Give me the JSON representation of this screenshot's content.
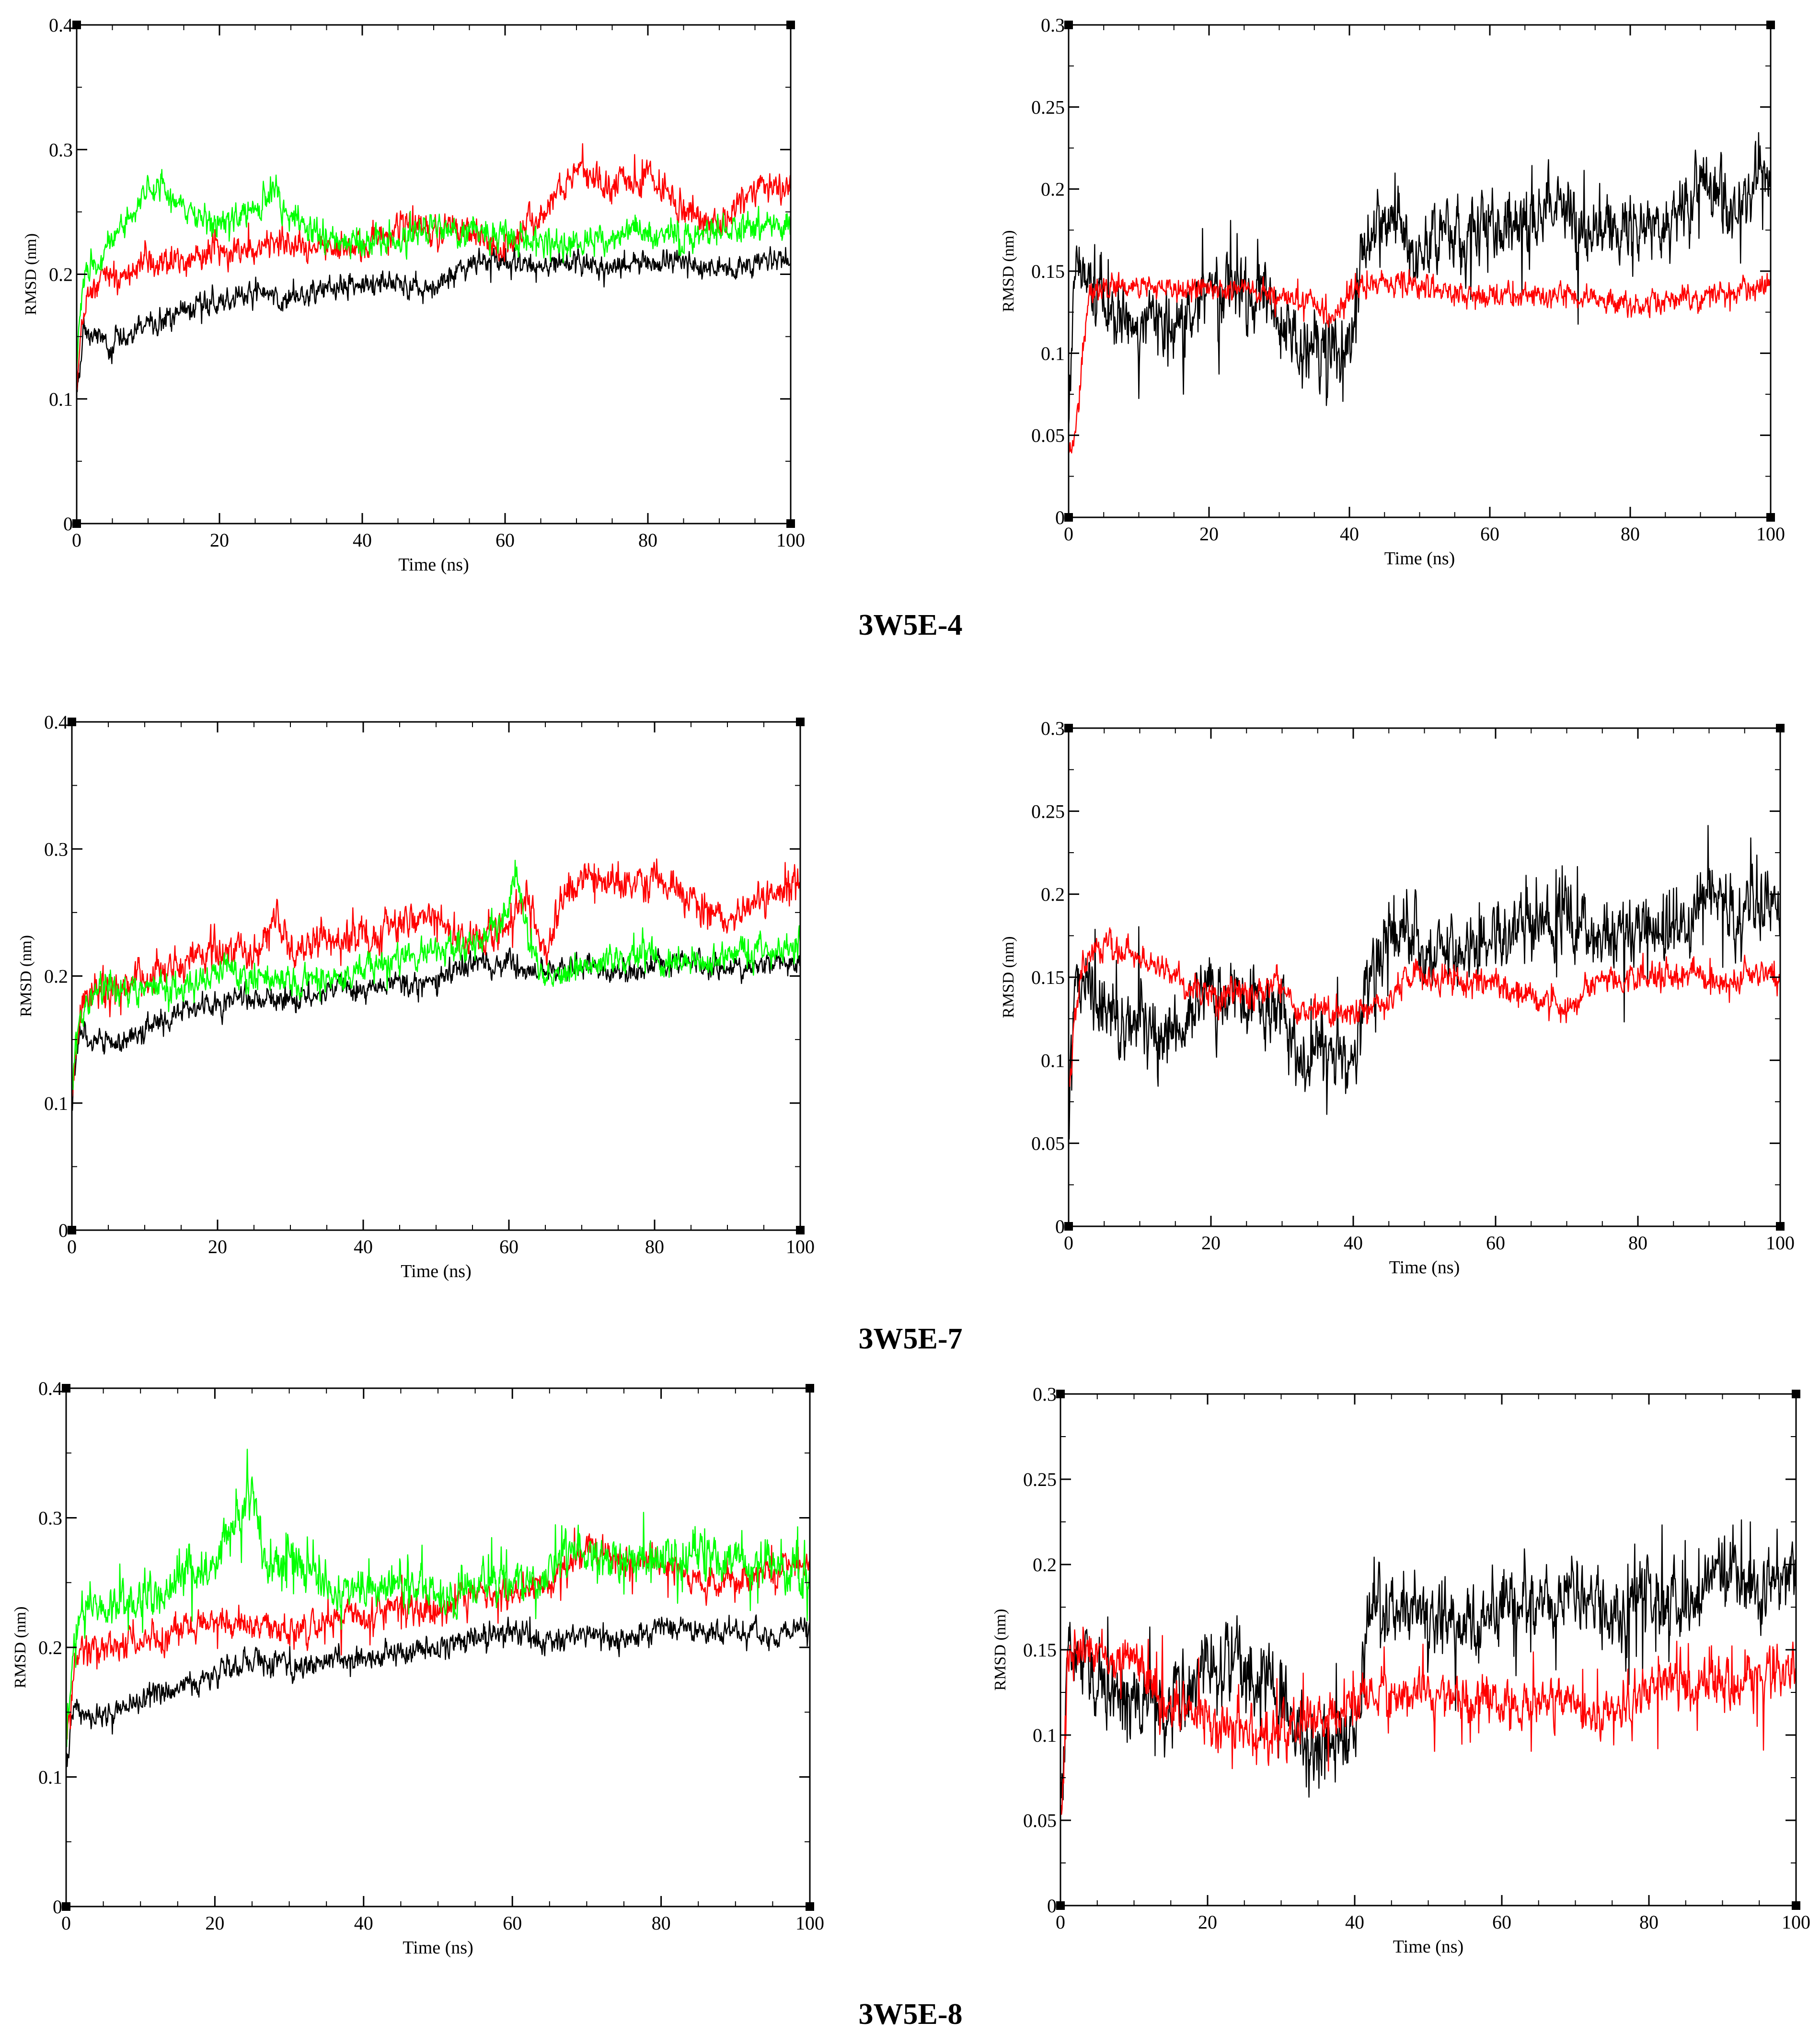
{
  "figure": {
    "captions": [
      "3W5E-4",
      "3W5E-7",
      "3W5E-8"
    ],
    "series_colors": {
      "black": "#000000",
      "red": "#ff0000",
      "green": "#00ff00"
    }
  },
  "chart_data": [
    {
      "type": "line",
      "id": "p1",
      "xlabel": "Time (ns)",
      "ylabel": "RMSD (nm)",
      "xlim": [
        0,
        100
      ],
      "ylim": [
        0,
        0.4
      ],
      "xticks": [
        0,
        20,
        40,
        60,
        80,
        100
      ],
      "xtick_labels": [
        "0",
        "20",
        "40",
        "60",
        "80",
        "100"
      ],
      "yticks": [
        0,
        0.1,
        0.2,
        0.3,
        0.4
      ],
      "ytick_labels": [
        "0",
        "0.1",
        "0.2",
        "0.3",
        "0.4"
      ],
      "series": [
        {
          "color": "#000000",
          "noise": 0.008,
          "spikes": 0.01,
          "x": [
            0,
            1,
            2,
            5,
            10,
            15,
            20,
            25,
            30,
            35,
            40,
            45,
            50,
            55,
            60,
            65,
            70,
            75,
            80,
            85,
            90,
            95,
            100
          ],
          "y": [
            0.1,
            0.16,
            0.15,
            0.145,
            0.16,
            0.17,
            0.18,
            0.185,
            0.18,
            0.19,
            0.19,
            0.195,
            0.19,
            0.21,
            0.21,
            0.205,
            0.21,
            0.205,
            0.21,
            0.21,
            0.205,
            0.21,
            0.21
          ]
        },
        {
          "color": "#ff0000",
          "noise": 0.01,
          "spikes": 0.015,
          "x": [
            0,
            1,
            2,
            5,
            10,
            15,
            20,
            25,
            30,
            35,
            40,
            45,
            50,
            55,
            60,
            65,
            67,
            70,
            75,
            80,
            85,
            90,
            95,
            100
          ],
          "y": [
            0.11,
            0.17,
            0.19,
            0.2,
            0.21,
            0.21,
            0.22,
            0.22,
            0.225,
            0.22,
            0.225,
            0.24,
            0.235,
            0.235,
            0.22,
            0.245,
            0.265,
            0.285,
            0.27,
            0.28,
            0.25,
            0.24,
            0.27,
            0.27
          ]
        },
        {
          "color": "#00ff00",
          "noise": 0.01,
          "spikes": 0.012,
          "x": [
            0,
            1,
            3,
            5,
            8,
            10,
            12,
            15,
            20,
            25,
            28,
            30,
            35,
            40,
            45,
            50,
            55,
            60,
            65,
            70,
            75,
            80,
            85,
            90,
            95,
            100
          ],
          "y": [
            0.12,
            0.2,
            0.21,
            0.23,
            0.25,
            0.27,
            0.27,
            0.25,
            0.24,
            0.25,
            0.27,
            0.24,
            0.23,
            0.225,
            0.23,
            0.235,
            0.235,
            0.23,
            0.225,
            0.225,
            0.23,
            0.235,
            0.23,
            0.235,
            0.235,
            0.24
          ]
        }
      ]
    },
    {
      "type": "line",
      "id": "p2",
      "xlabel": "Time (ns)",
      "ylabel": "RMSD (nm)",
      "xlim": [
        0,
        100
      ],
      "ylim": [
        0,
        0.3
      ],
      "xticks": [
        0,
        20,
        40,
        60,
        80,
        100
      ],
      "xtick_labels": [
        "0",
        "20",
        "40",
        "60",
        "80",
        "100"
      ],
      "yticks": [
        0,
        0.05,
        0.1,
        0.15,
        0.2,
        0.25,
        0.3
      ],
      "ytick_labels": [
        "0",
        "0.05",
        "0.1",
        "0.15",
        "0.2",
        "0.25",
        "0.3"
      ],
      "series": [
        {
          "color": "#000000",
          "noise": 0.018,
          "spikes": 0.04,
          "x": [
            0,
            1,
            3,
            5,
            10,
            15,
            20,
            25,
            30,
            33,
            36,
            40,
            42,
            45,
            50,
            55,
            60,
            65,
            70,
            75,
            80,
            85,
            90,
            95,
            100
          ],
          "y": [
            0.06,
            0.15,
            0.14,
            0.13,
            0.12,
            0.11,
            0.14,
            0.14,
            0.13,
            0.1,
            0.1,
            0.1,
            0.17,
            0.18,
            0.165,
            0.17,
            0.175,
            0.18,
            0.185,
            0.17,
            0.18,
            0.175,
            0.2,
            0.185,
            0.21
          ]
        },
        {
          "color": "#ff0000",
          "noise": 0.006,
          "spikes": 0.01,
          "x": [
            0,
            1,
            2,
            3,
            5,
            10,
            20,
            30,
            35,
            38,
            40,
            45,
            50,
            60,
            70,
            80,
            90,
            100
          ],
          "y": [
            0.04,
            0.05,
            0.1,
            0.14,
            0.14,
            0.14,
            0.14,
            0.135,
            0.13,
            0.12,
            0.14,
            0.145,
            0.14,
            0.135,
            0.135,
            0.13,
            0.135,
            0.14
          ]
        }
      ]
    },
    {
      "type": "line",
      "id": "p3",
      "xlabel": "Time (ns)",
      "ylabel": "RMSD (nm)",
      "xlim": [
        0,
        100
      ],
      "ylim": [
        0,
        0.4
      ],
      "xticks": [
        0,
        20,
        40,
        60,
        80,
        100
      ],
      "xtick_labels": [
        "0",
        "20",
        "40",
        "60",
        "80",
        "100"
      ],
      "yticks": [
        0,
        0.1,
        0.2,
        0.3,
        0.4
      ],
      "ytick_labels": [
        "0",
        "0.1",
        "0.2",
        "0.3",
        "0.4"
      ],
      "series": [
        {
          "color": "#000000",
          "noise": 0.008,
          "spikes": 0.01,
          "x": [
            0,
            1,
            2,
            5,
            10,
            15,
            20,
            25,
            30,
            35,
            40,
            45,
            50,
            55,
            60,
            65,
            70,
            75,
            80,
            85,
            90,
            95,
            100
          ],
          "y": [
            0.1,
            0.16,
            0.15,
            0.145,
            0.16,
            0.17,
            0.18,
            0.185,
            0.18,
            0.19,
            0.19,
            0.195,
            0.195,
            0.21,
            0.21,
            0.205,
            0.21,
            0.205,
            0.21,
            0.21,
            0.205,
            0.21,
            0.21
          ]
        },
        {
          "color": "#ff0000",
          "noise": 0.012,
          "spikes": 0.02,
          "x": [
            0,
            1,
            2,
            5,
            10,
            15,
            20,
            25,
            28,
            30,
            35,
            40,
            45,
            50,
            55,
            60,
            62,
            65,
            68,
            70,
            75,
            80,
            85,
            90,
            95,
            100
          ],
          "y": [
            0.11,
            0.17,
            0.19,
            0.19,
            0.2,
            0.21,
            0.22,
            0.22,
            0.25,
            0.22,
            0.23,
            0.23,
            0.24,
            0.245,
            0.23,
            0.24,
            0.27,
            0.22,
            0.27,
            0.28,
            0.27,
            0.28,
            0.26,
            0.24,
            0.26,
            0.27
          ]
        },
        {
          "color": "#00ff00",
          "noise": 0.01,
          "spikes": 0.015,
          "x": [
            0,
            1,
            3,
            5,
            10,
            15,
            20,
            25,
            30,
            35,
            40,
            45,
            50,
            55,
            58,
            60,
            61,
            63,
            65,
            70,
            75,
            80,
            85,
            90,
            95,
            100
          ],
          "y": [
            0.12,
            0.17,
            0.185,
            0.19,
            0.19,
            0.19,
            0.2,
            0.2,
            0.195,
            0.2,
            0.205,
            0.215,
            0.22,
            0.225,
            0.24,
            0.25,
            0.28,
            0.22,
            0.2,
            0.205,
            0.215,
            0.215,
            0.21,
            0.215,
            0.22,
            0.22
          ]
        }
      ]
    },
    {
      "type": "line",
      "id": "p4",
      "xlabel": "Time (ns)",
      "ylabel": "RMSD (nm)",
      "xlim": [
        0,
        100
      ],
      "ylim": [
        0,
        0.3
      ],
      "xticks": [
        0,
        20,
        40,
        60,
        80,
        100
      ],
      "xtick_labels": [
        "0",
        "20",
        "40",
        "60",
        "80",
        "100"
      ],
      "yticks": [
        0,
        0.05,
        0.1,
        0.15,
        0.2,
        0.25,
        0.3
      ],
      "ytick_labels": [
        "0",
        "0.05",
        "0.1",
        "0.15",
        "0.2",
        "0.25",
        "0.3"
      ],
      "series": [
        {
          "color": "#000000",
          "noise": 0.018,
          "spikes": 0.04,
          "x": [
            0,
            1,
            3,
            5,
            10,
            15,
            20,
            25,
            30,
            33,
            36,
            40,
            42,
            45,
            47,
            50,
            55,
            60,
            65,
            70,
            75,
            80,
            85,
            90,
            95,
            100
          ],
          "y": [
            0.07,
            0.15,
            0.14,
            0.13,
            0.12,
            0.11,
            0.145,
            0.14,
            0.135,
            0.1,
            0.1,
            0.1,
            0.15,
            0.18,
            0.18,
            0.165,
            0.17,
            0.175,
            0.18,
            0.185,
            0.17,
            0.18,
            0.175,
            0.2,
            0.185,
            0.2
          ]
        },
        {
          "color": "#ff0000",
          "noise": 0.007,
          "spikes": 0.012,
          "x": [
            0,
            1,
            2,
            5,
            10,
            15,
            20,
            25,
            30,
            32,
            35,
            40,
            45,
            48,
            50,
            60,
            65,
            70,
            75,
            80,
            90,
            100
          ],
          "y": [
            0.08,
            0.13,
            0.16,
            0.165,
            0.16,
            0.15,
            0.14,
            0.14,
            0.145,
            0.13,
            0.13,
            0.13,
            0.135,
            0.15,
            0.15,
            0.145,
            0.14,
            0.13,
            0.15,
            0.15,
            0.15,
            0.15
          ]
        }
      ]
    },
    {
      "type": "line",
      "id": "p5",
      "xlabel": "Time (ns)",
      "ylabel": "RMSD (nm)",
      "xlim": [
        0,
        100
      ],
      "ylim": [
        0,
        0.4
      ],
      "xticks": [
        0,
        20,
        40,
        60,
        80,
        100
      ],
      "xtick_labels": [
        "0",
        "20",
        "40",
        "60",
        "80",
        "100"
      ],
      "yticks": [
        0,
        0.1,
        0.2,
        0.3,
        0.4
      ],
      "ytick_labels": [
        "0",
        "0.1",
        "0.2",
        "0.3",
        "0.4"
      ],
      "series": [
        {
          "color": "#000000",
          "noise": 0.008,
          "spikes": 0.01,
          "x": [
            0,
            1,
            2,
            5,
            10,
            15,
            20,
            25,
            30,
            35,
            40,
            45,
            50,
            55,
            60,
            65,
            70,
            75,
            80,
            85,
            90,
            95,
            100
          ],
          "y": [
            0.1,
            0.16,
            0.15,
            0.145,
            0.16,
            0.17,
            0.18,
            0.19,
            0.185,
            0.19,
            0.19,
            0.195,
            0.2,
            0.21,
            0.21,
            0.205,
            0.21,
            0.205,
            0.215,
            0.21,
            0.21,
            0.21,
            0.215
          ]
        },
        {
          "color": "#ff0000",
          "noise": 0.01,
          "spikes": 0.02,
          "x": [
            0,
            1,
            2,
            5,
            10,
            15,
            20,
            25,
            30,
            35,
            40,
            45,
            50,
            55,
            60,
            65,
            70,
            75,
            80,
            85,
            90,
            95,
            100
          ],
          "y": [
            0.12,
            0.18,
            0.2,
            0.2,
            0.205,
            0.21,
            0.22,
            0.22,
            0.21,
            0.22,
            0.225,
            0.23,
            0.23,
            0.24,
            0.24,
            0.25,
            0.275,
            0.265,
            0.27,
            0.25,
            0.25,
            0.26,
            0.265
          ]
        },
        {
          "color": "#00ff00",
          "noise": 0.014,
          "spikes": 0.03,
          "x": [
            0,
            1,
            3,
            5,
            10,
            15,
            20,
            23,
            25,
            27,
            30,
            35,
            40,
            45,
            50,
            55,
            60,
            65,
            68,
            70,
            75,
            80,
            85,
            90,
            95,
            100
          ],
          "y": [
            0.13,
            0.21,
            0.23,
            0.23,
            0.24,
            0.25,
            0.26,
            0.3,
            0.32,
            0.26,
            0.27,
            0.25,
            0.24,
            0.25,
            0.24,
            0.245,
            0.25,
            0.26,
            0.28,
            0.27,
            0.265,
            0.27,
            0.27,
            0.265,
            0.26,
            0.255
          ]
        }
      ]
    },
    {
      "type": "line",
      "id": "p6",
      "xlabel": "Time (ns)",
      "ylabel": "RMSD (nm)",
      "xlim": [
        0,
        100
      ],
      "ylim": [
        0,
        0.3
      ],
      "xticks": [
        0,
        20,
        40,
        60,
        80,
        100
      ],
      "xtick_labels": [
        "0",
        "20",
        "40",
        "60",
        "80",
        "100"
      ],
      "yticks": [
        0,
        0.05,
        0.1,
        0.15,
        0.2,
        0.25,
        0.3
      ],
      "ytick_labels": [
        "0",
        "0.05",
        "0.1",
        "0.15",
        "0.2",
        "0.25",
        "0.3"
      ],
      "series": [
        {
          "color": "#000000",
          "noise": 0.018,
          "spikes": 0.04,
          "x": [
            0,
            1,
            3,
            5,
            10,
            15,
            20,
            25,
            30,
            33,
            36,
            40,
            42,
            45,
            50,
            55,
            60,
            65,
            70,
            75,
            80,
            85,
            90,
            95,
            100
          ],
          "y": [
            0.05,
            0.15,
            0.14,
            0.13,
            0.12,
            0.11,
            0.145,
            0.14,
            0.13,
            0.1,
            0.1,
            0.1,
            0.17,
            0.18,
            0.165,
            0.17,
            0.175,
            0.18,
            0.185,
            0.17,
            0.18,
            0.175,
            0.195,
            0.18,
            0.2
          ]
        },
        {
          "color": "#ff0000",
          "noise": 0.012,
          "spikes": 0.03,
          "x": [
            0,
            1,
            2,
            5,
            10,
            15,
            20,
            25,
            30,
            35,
            40,
            45,
            50,
            60,
            70,
            75,
            80,
            90,
            100
          ],
          "y": [
            0.04,
            0.14,
            0.15,
            0.15,
            0.14,
            0.12,
            0.11,
            0.1,
            0.1,
            0.11,
            0.12,
            0.125,
            0.125,
            0.12,
            0.12,
            0.11,
            0.13,
            0.13,
            0.135
          ]
        }
      ]
    }
  ]
}
